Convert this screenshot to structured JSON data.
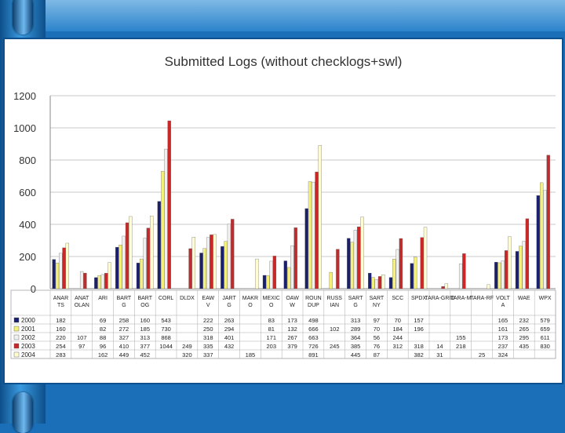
{
  "colors": {
    "slide_background": "#1a6fb8",
    "series": [
      "#1a1f6e",
      "#f4f07a",
      "#f0f0f0",
      "#c82828",
      "#fefcd0"
    ]
  },
  "chart_data": {
    "type": "bar",
    "title": "Submitted Logs (without checklogs+swl)",
    "ylim": [
      0,
      1200
    ],
    "yticks": [
      0,
      200,
      400,
      600,
      800,
      1000,
      1200
    ],
    "grid": true,
    "legend": "in data table below chart",
    "categories": [
      "ANAR TS",
      "ANAT OLAN",
      "ARI",
      "BART G",
      "BART OG",
      "CORL",
      "DLDX",
      "EAW V",
      "JART G",
      "MAKR O",
      "MEXIC O",
      "OAW W",
      "ROUN DUP",
      "RUSS IAN",
      "SART G",
      "SART NY",
      "SCC",
      "SPDX",
      "TARA-GRID",
      "TARA-M",
      "TARA-RF",
      "VOLT A",
      "WAE",
      "WPX"
    ],
    "series": [
      {
        "name": "2000",
        "values": [
          182,
          null,
          69,
          258,
          160,
          543,
          null,
          222,
          263,
          null,
          83,
          173,
          498,
          null,
          313,
          97,
          70,
          157,
          null,
          null,
          null,
          165,
          232,
          579
        ]
      },
      {
        "name": "2001",
        "values": [
          160,
          null,
          82,
          272,
          185,
          730,
          null,
          250,
          294,
          null,
          81,
          132,
          666,
          102,
          289,
          70,
          184,
          196,
          null,
          null,
          null,
          161,
          265,
          659
        ]
      },
      {
        "name": "2002",
        "values": [
          220,
          107,
          88,
          327,
          313,
          868,
          null,
          318,
          401,
          null,
          171,
          267,
          663,
          null,
          364,
          56,
          244,
          null,
          null,
          155,
          null,
          173,
          295,
          611
        ]
      },
      {
        "name": "2003",
        "values": [
          254,
          97,
          96,
          410,
          377,
          1044,
          249,
          335,
          432,
          null,
          203,
          379,
          726,
          245,
          385,
          76,
          312,
          318,
          14,
          218,
          null,
          237,
          435,
          830
        ]
      },
      {
        "name": "2004",
        "values": [
          283,
          null,
          162,
          449,
          452,
          null,
          320,
          337,
          null,
          185,
          null,
          null,
          891,
          null,
          445,
          87,
          null,
          382,
          31,
          null,
          25,
          324,
          null,
          null
        ]
      }
    ]
  }
}
